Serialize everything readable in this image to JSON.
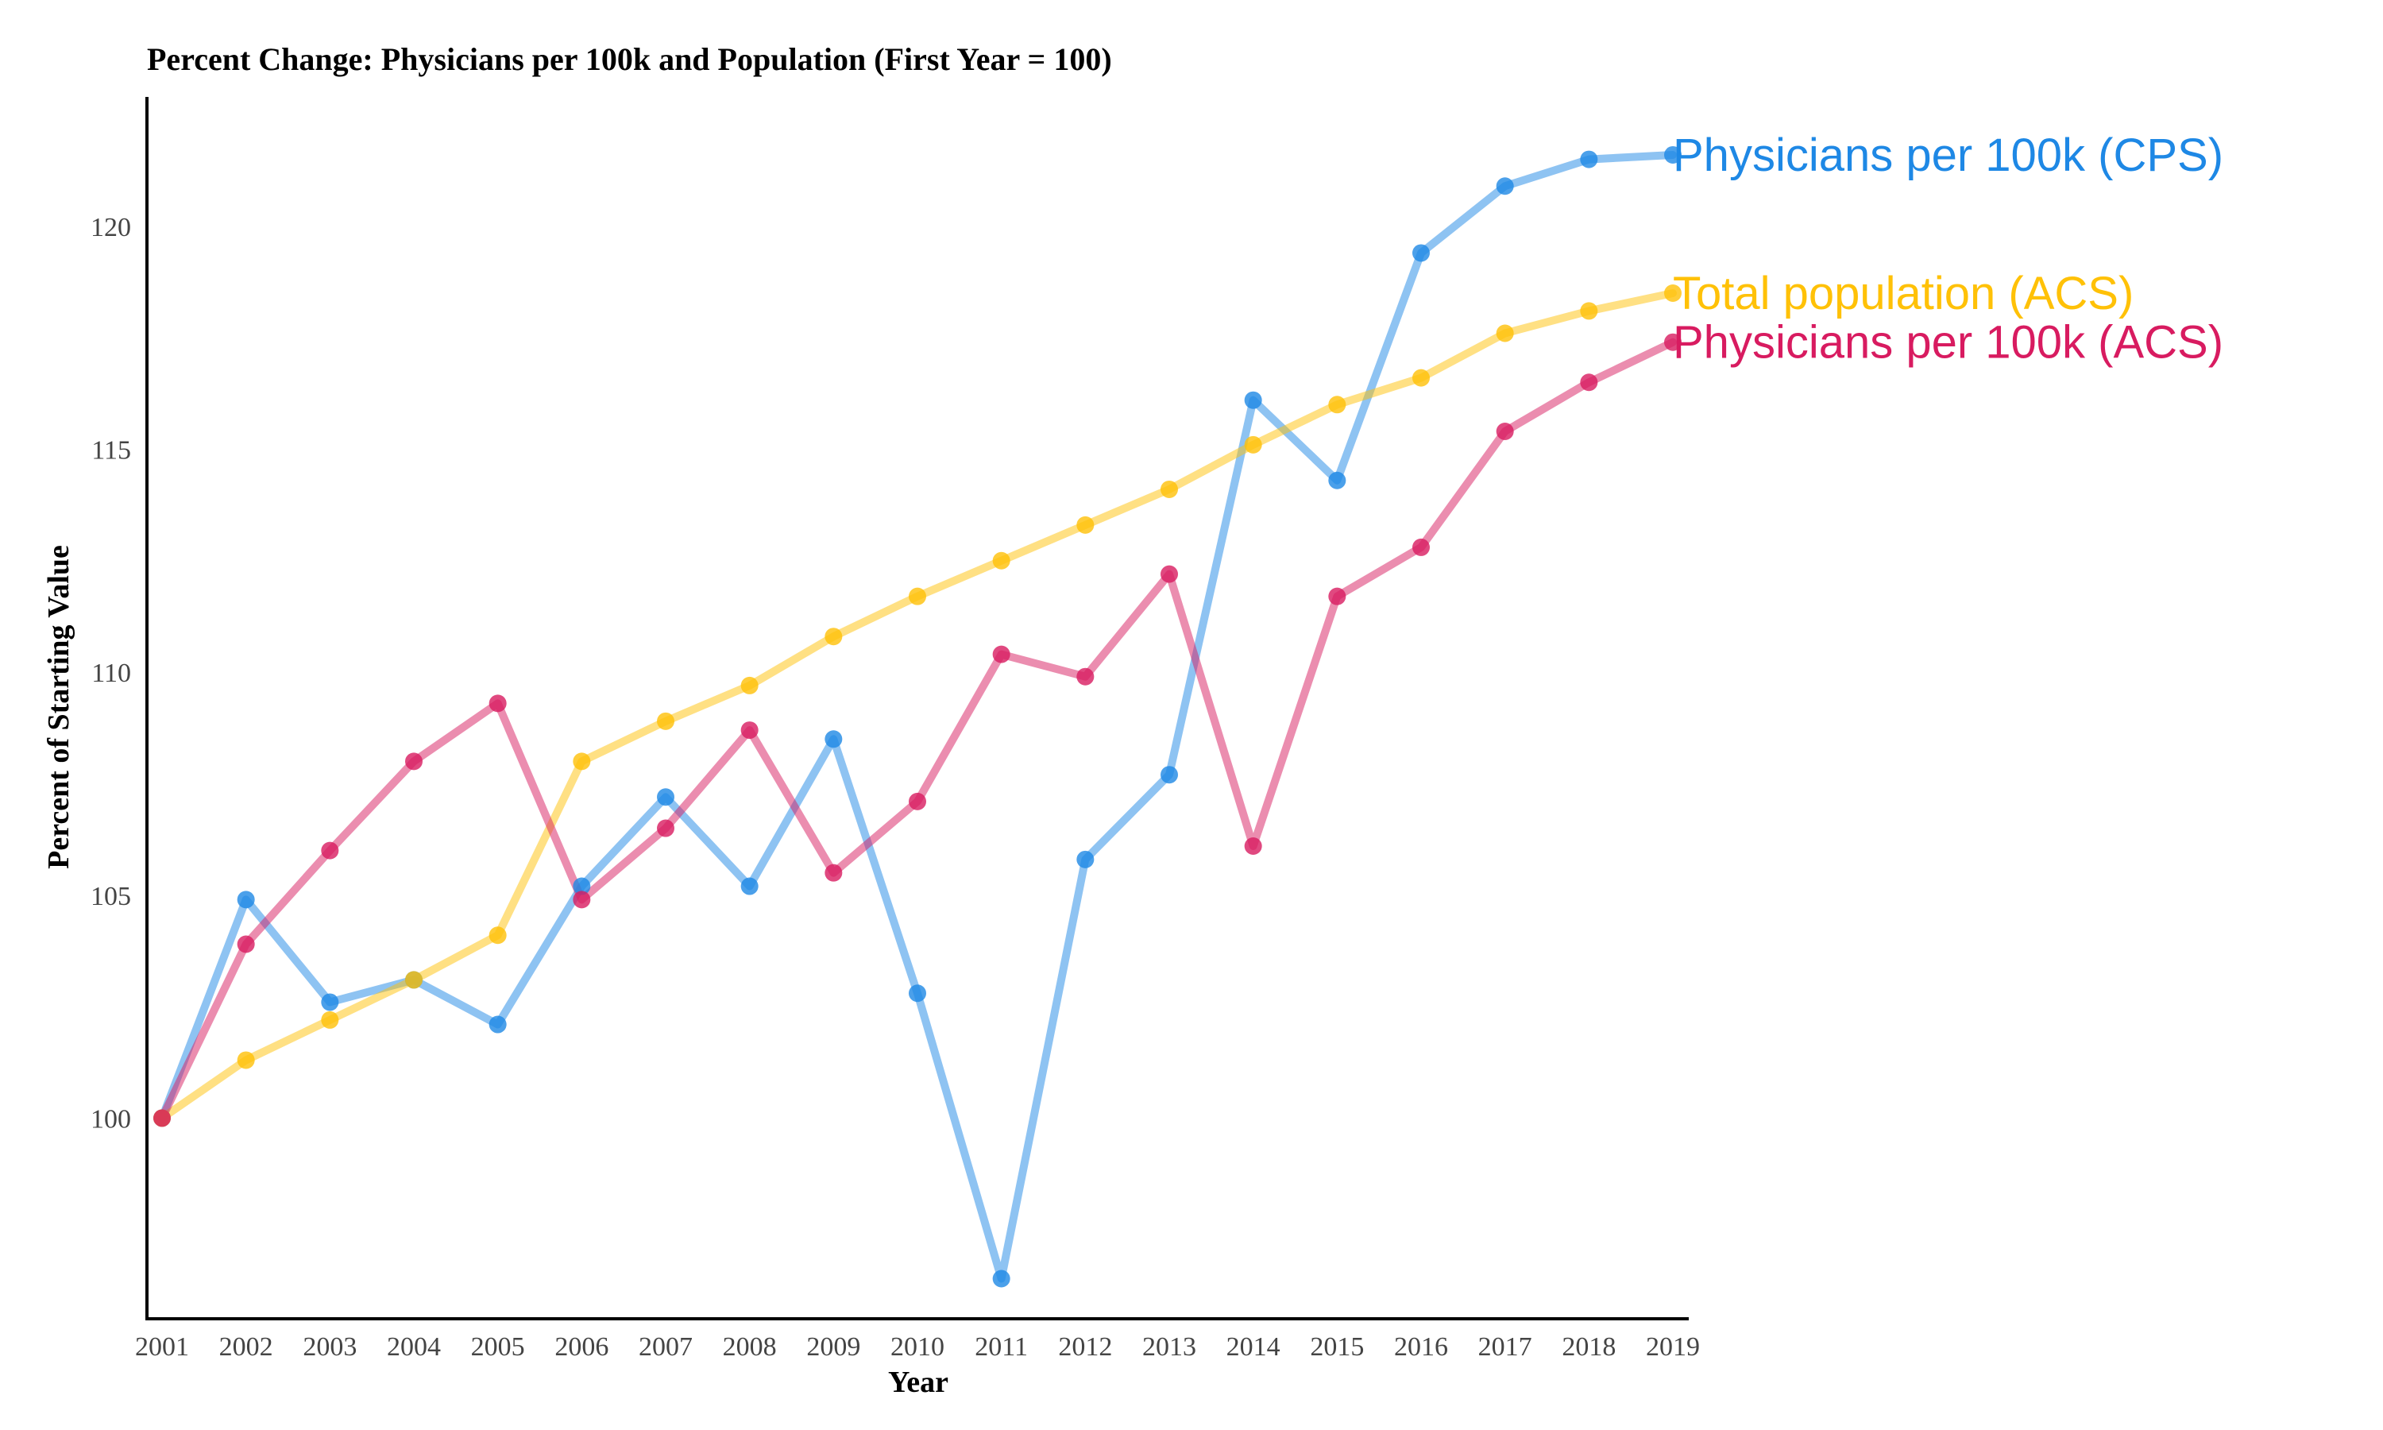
{
  "chart_data": {
    "type": "line",
    "title": "Percent Change: Physicians per 100k and Population (First Year = 100)",
    "xlabel": "Year",
    "ylabel": "Percent of Starting Value",
    "x": [
      2001,
      2002,
      2003,
      2004,
      2005,
      2006,
      2007,
      2008,
      2009,
      2010,
      2011,
      2012,
      2013,
      2014,
      2015,
      2016,
      2017,
      2018,
      2019
    ],
    "xlim": [
      2001,
      2019
    ],
    "ylim": [
      95.5,
      122.9
    ],
    "yticks": [
      100,
      105,
      110,
      115,
      120
    ],
    "grid": false,
    "legend": "direct labels at line ends",
    "series": [
      {
        "name": "Physicians per 100k (CPS)",
        "color": "#1E88E5",
        "values": [
          100.0,
          104.9,
          102.6,
          103.1,
          102.1,
          105.2,
          107.2,
          105.2,
          108.5,
          102.8,
          96.4,
          105.8,
          107.7,
          116.1,
          114.3,
          119.4,
          120.9,
          121.5,
          121.6
        ]
      },
      {
        "name": "Total population (ACS)",
        "color": "#FFC107",
        "values": [
          100.0,
          101.3,
          102.2,
          103.1,
          104.1,
          108.0,
          108.9,
          109.7,
          110.8,
          111.7,
          112.5,
          113.3,
          114.1,
          115.1,
          116.0,
          116.6,
          117.6,
          118.1,
          118.5
        ]
      },
      {
        "name": "Physicians per 100k (ACS)",
        "color": "#D81B60",
        "values": [
          100.0,
          103.9,
          106.0,
          108.0,
          109.3,
          104.9,
          106.5,
          108.7,
          105.5,
          107.1,
          110.4,
          109.9,
          112.2,
          106.1,
          111.7,
          112.8,
          115.4,
          116.5,
          117.4
        ]
      }
    ]
  }
}
